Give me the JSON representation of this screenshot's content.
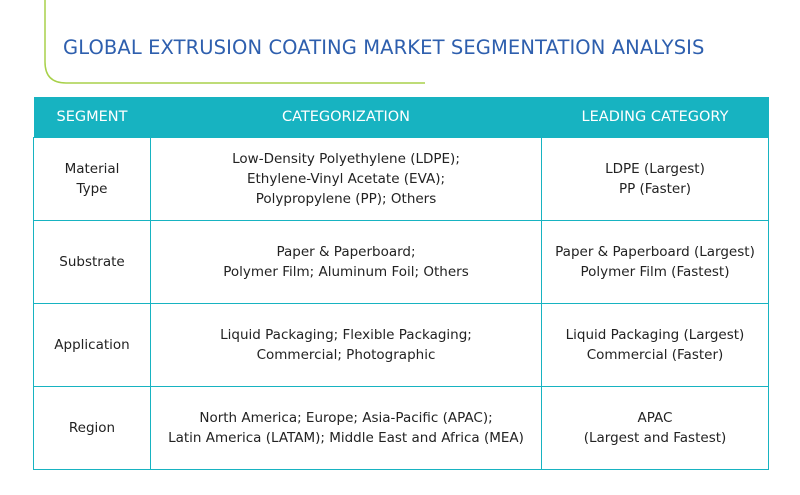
{
  "header": {
    "title": "GLOBAL EXTRUSION COATING MARKET SEGMENTATION ANALYSIS"
  },
  "table": {
    "columns": [
      "SEGMENT",
      "CATEGORIZATION",
      "LEADING CATEGORY"
    ],
    "rows": [
      [
        [
          "Material",
          "Type"
        ],
        [
          "Low-Density Polyethylene (LDPE);",
          "Ethylene-Vinyl Acetate (EVA);",
          "Polypropylene (PP); Others"
        ],
        [
          "LDPE (Largest)",
          "PP (Faster)"
        ]
      ],
      [
        [
          "Substrate"
        ],
        [
          "Paper & Paperboard;",
          "Polymer Film; Aluminum Foil; Others"
        ],
        [
          "Paper & Paperboard (Largest)",
          "Polymer Film (Fastest)"
        ]
      ],
      [
        [
          "Application"
        ],
        [
          "Liquid Packaging; Flexible Packaging;",
          "Commercial; Photographic"
        ],
        [
          "Liquid Packaging (Largest)",
          "Commercial (Faster)"
        ]
      ],
      [
        [
          "Region"
        ],
        [
          "North America; Europe; Asia-Pacific (APAC);",
          "Latin America (LATAM); Middle East and Africa (MEA)"
        ],
        [
          "APAC",
          "(Largest and Fastest)"
        ]
      ]
    ]
  }
}
